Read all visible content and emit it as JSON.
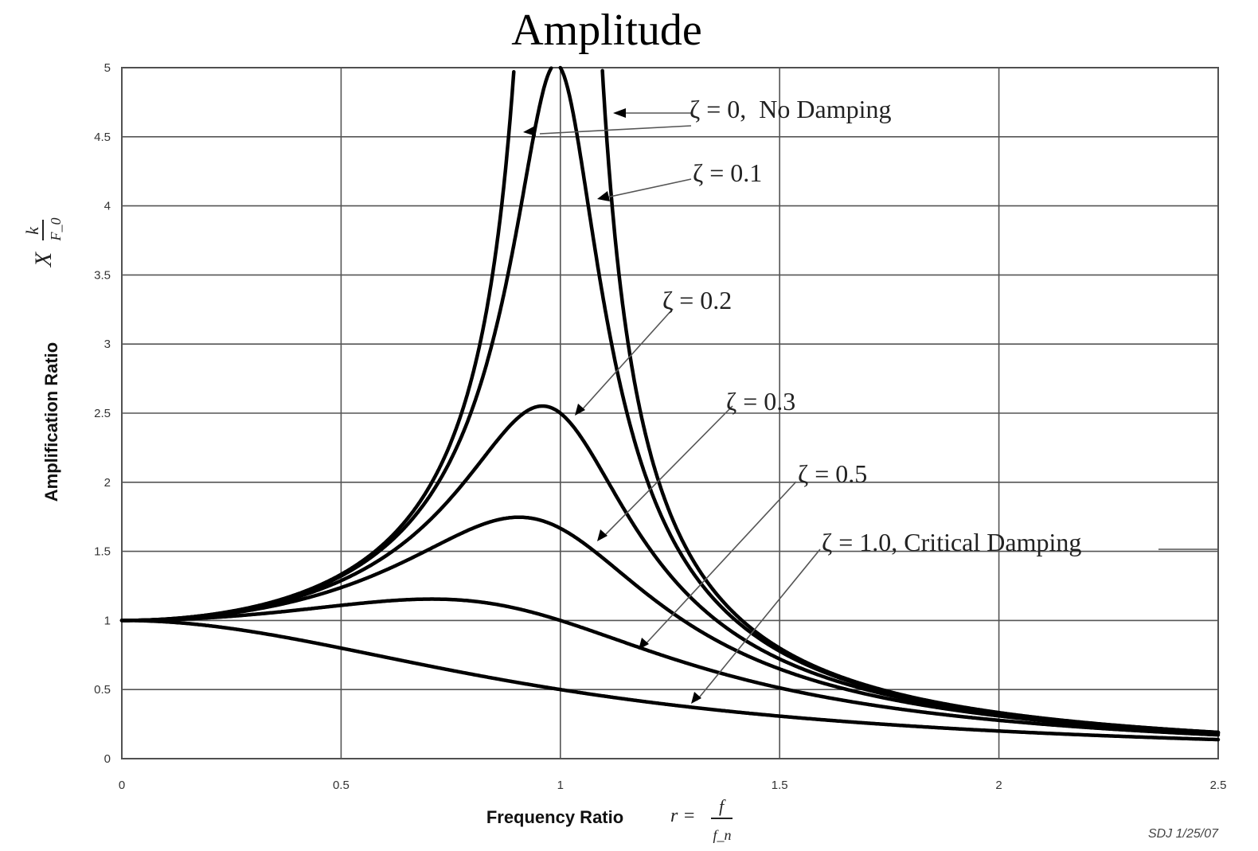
{
  "chart_data": {
    "type": "line",
    "title": "Amplitude",
    "xlabel": "Frequency Ratio",
    "xlabel_formula": {
      "lhs": "r =",
      "num": "f",
      "den": "f_n"
    },
    "ylabel": "Amplification Ratio",
    "ylabel_formula": {
      "x": "X",
      "num": "k",
      "den": "F_0"
    },
    "xlim": [
      0,
      2.5
    ],
    "ylim": [
      0,
      5
    ],
    "x_ticks": [
      "0",
      "0.5",
      "1",
      "1.5",
      "2",
      "2.5"
    ],
    "y_ticks": [
      "0",
      "0.5",
      "1",
      "1.5",
      "2",
      "2.5",
      "3",
      "3.5",
      "4",
      "4.5",
      "5"
    ],
    "grid": true,
    "series": [
      {
        "name": "ζ = 0, No Damping",
        "zeta": 0
      },
      {
        "name": "ζ = 0.1",
        "zeta": 0.1
      },
      {
        "name": "ζ = 0.2",
        "zeta": 0.2
      },
      {
        "name": "ζ = 0.3",
        "zeta": 0.3
      },
      {
        "name": "ζ = 0.5",
        "zeta": 0.5
      },
      {
        "name": "ζ = 1.0, Critical Damping",
        "zeta": 1.0
      }
    ],
    "annotations": [
      "ζ = 0,  No Damping",
      "ζ = 0.1",
      "ζ = 0.2",
      "ζ = 0.3",
      "ζ = 0.5",
      "ζ = 1.0, Critical Damping"
    ],
    "stamp": "SDJ 1/25/07"
  }
}
